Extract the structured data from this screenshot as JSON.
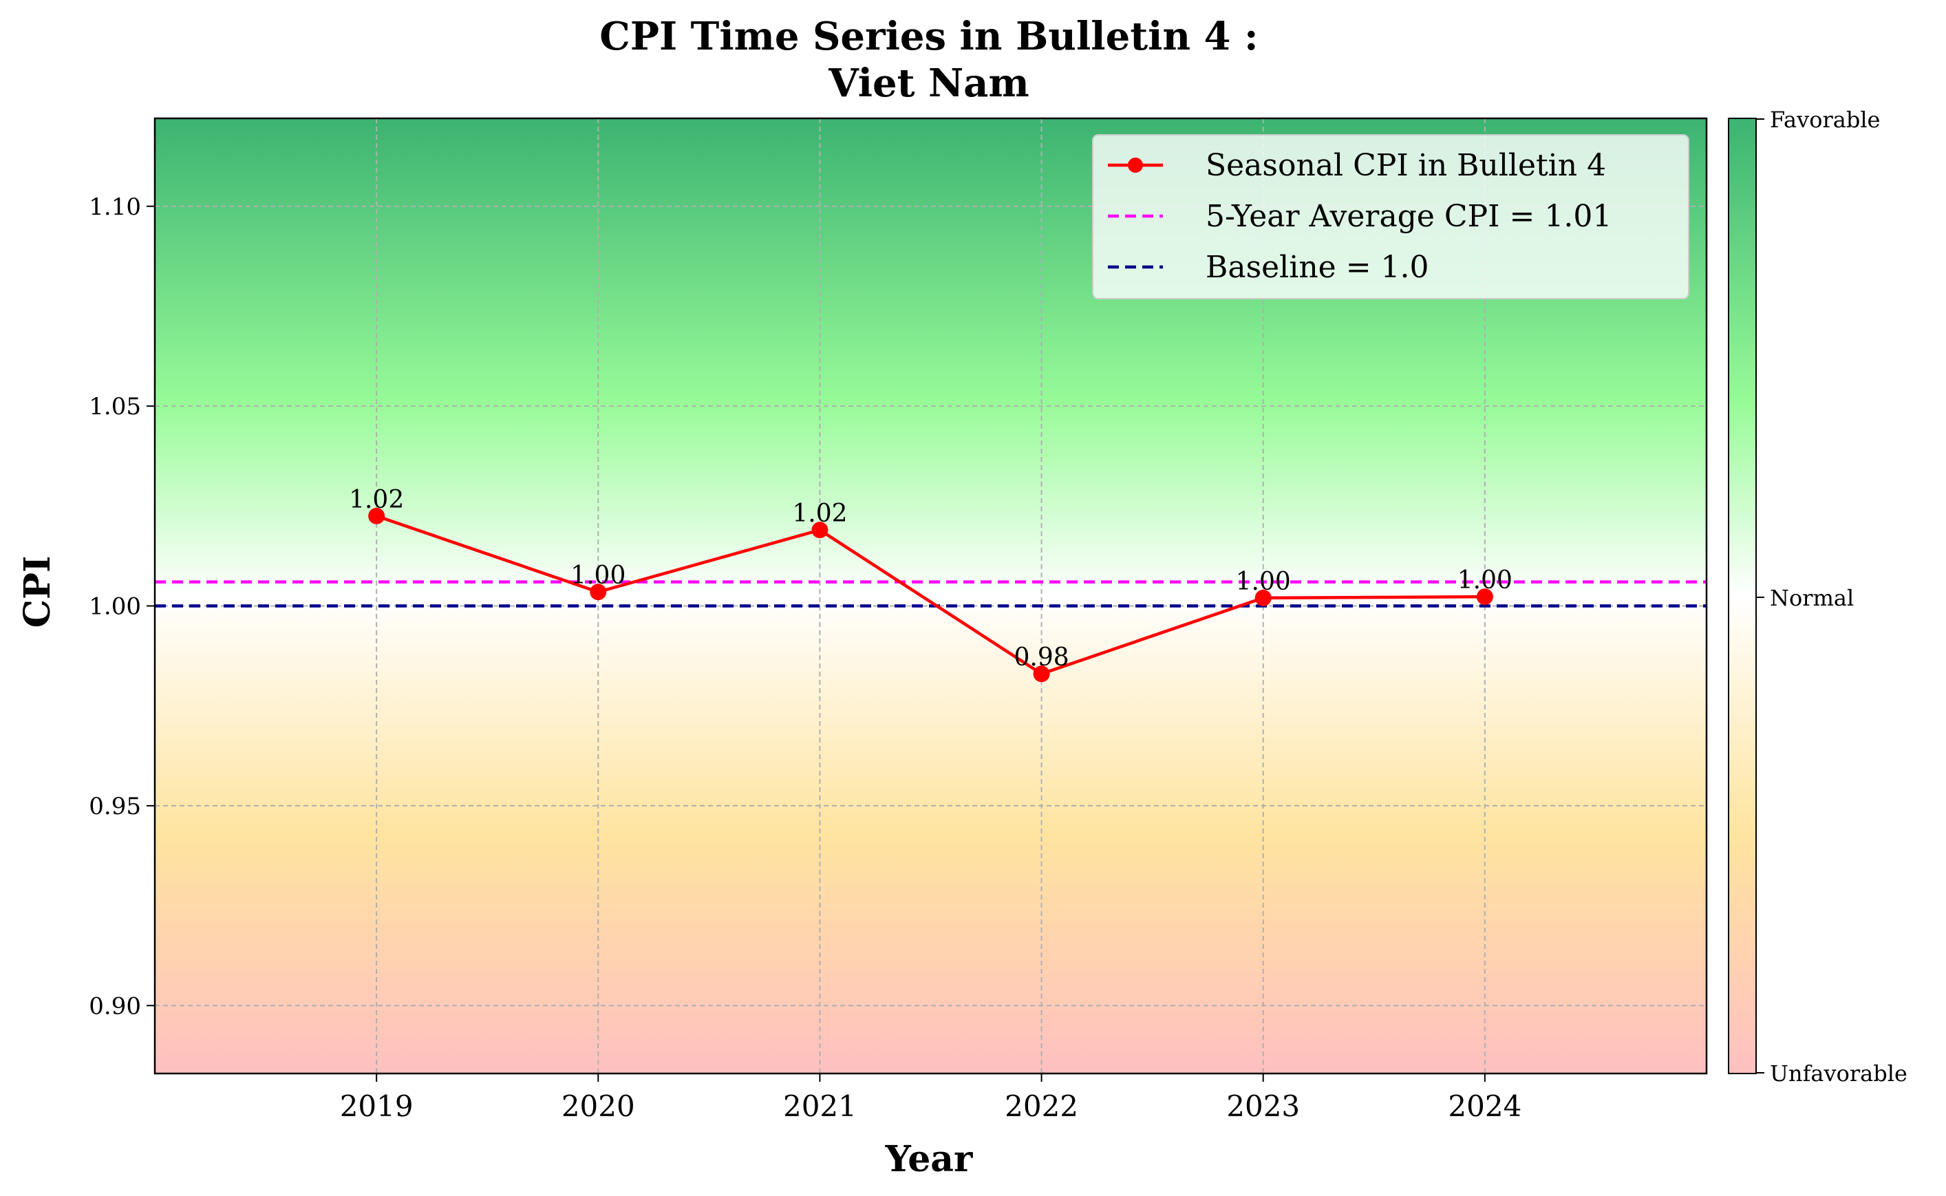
{
  "chart_data": {
    "type": "line",
    "title_line1": "CPI Time Series in Bulletin 4 :",
    "title_line2": "Viet Nam",
    "xlabel": "Year",
    "ylabel": "CPI",
    "x": [
      2019,
      2020,
      2021,
      2022,
      2023,
      2024
    ],
    "xlim": [
      2018,
      2025
    ],
    "ylim": [
      0.883,
      1.122
    ],
    "yticks": [
      0.9,
      0.95,
      1.0,
      1.05,
      1.1
    ],
    "ytick_labels": [
      "0.90",
      "0.95",
      "1.00",
      "1.05",
      "1.10"
    ],
    "grid": true,
    "series": [
      {
        "name": "Seasonal CPI in Bulletin 4",
        "values": [
          1.0225,
          1.0035,
          1.019,
          0.983,
          1.002,
          1.0023
        ],
        "labels": [
          "1.02",
          "1.00",
          "1.02",
          "0.98",
          "1.00",
          "1.00"
        ],
        "color": "#ff0000"
      }
    ],
    "reference_lines": [
      {
        "name": "5-Year Average CPI = 1.01",
        "value": 1.006,
        "color": "#ff00ff"
      },
      {
        "name": "Baseline = 1.0",
        "value": 1.0,
        "color": "#00008b"
      }
    ],
    "legend_position": "top-right",
    "background_gradient": {
      "top": "#3cb371",
      "upper": "#98fb98",
      "middle": "#ffffff",
      "lower": "#ffe4a0",
      "bottom": "#ffc0c0"
    },
    "colorbar": {
      "labels": [
        "Favorable",
        "Normal",
        "Unfavorable"
      ]
    }
  }
}
